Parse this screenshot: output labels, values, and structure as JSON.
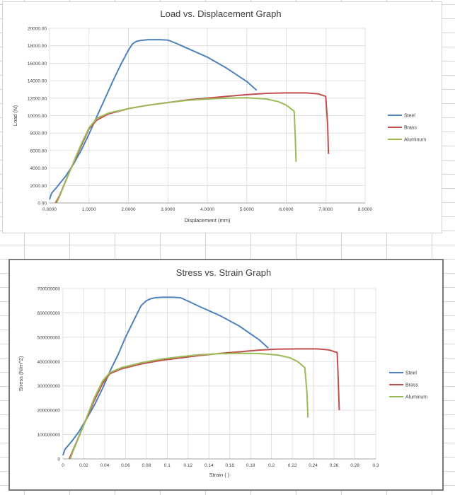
{
  "chart_data": [
    {
      "type": "line",
      "title": "Load vs. Displacement Graph",
      "xlabel": "Displacement (mm)",
      "ylabel": "Load (N)",
      "xlim": [
        0,
        8
      ],
      "ylim": [
        0,
        20000
      ],
      "xticks": [
        0,
        1,
        2,
        3,
        4,
        5,
        6,
        7,
        8
      ],
      "xtick_labels": [
        "0.0000",
        "1.0000",
        "2.0000",
        "3.0000",
        "4.0000",
        "5.0000",
        "6.0000",
        "7.0000",
        "8.0000"
      ],
      "yticks": [
        0,
        2000,
        4000,
        6000,
        8000,
        10000,
        12000,
        14000,
        16000,
        18000,
        20000
      ],
      "ytick_labels": [
        "0.00",
        "2000.00",
        "4000.00",
        "6000.00",
        "8000.00",
        "10000.00",
        "12000.00",
        "14000.00",
        "16000.00",
        "18000.00",
        "20000.00"
      ],
      "grid": true,
      "legend_position": "right",
      "series": [
        {
          "name": "Steel",
          "color": "#4f81bd",
          "x": [
            0,
            0.05,
            0.2,
            0.4,
            0.6,
            0.8,
            1.0,
            1.2,
            1.4,
            1.6,
            1.8,
            2.0,
            2.1,
            2.2,
            2.3,
            2.5,
            2.8,
            3.0,
            3.2,
            3.5,
            4.0,
            4.5,
            5.0,
            5.25
          ],
          "y": [
            400,
            1100,
            1900,
            3000,
            4400,
            6000,
            7900,
            9900,
            11900,
            13900,
            15800,
            17500,
            18200,
            18500,
            18600,
            18700,
            18700,
            18650,
            18300,
            17700,
            16700,
            15400,
            13900,
            12900
          ]
        },
        {
          "name": "Brass",
          "color": "#c0504d",
          "x": [
            0.15,
            0.25,
            0.5,
            0.8,
            1.0,
            1.2,
            1.5,
            2.0,
            2.5,
            3.0,
            3.5,
            4.0,
            4.5,
            5.0,
            5.5,
            6.0,
            6.5,
            6.8,
            7.0,
            7.05,
            7.07
          ],
          "y": [
            0,
            800,
            3500,
            6500,
            8500,
            9500,
            10200,
            10800,
            11200,
            11500,
            11800,
            12000,
            12200,
            12400,
            12550,
            12600,
            12600,
            12500,
            12200,
            9000,
            5600
          ]
        },
        {
          "name": "Aluminum",
          "color": "#9bbb59",
          "x": [
            0.18,
            0.25,
            0.5,
            0.8,
            1.0,
            1.2,
            1.5,
            2.0,
            2.5,
            3.0,
            3.5,
            4.0,
            4.5,
            5.0,
            5.5,
            5.8,
            6.0,
            6.2,
            6.23,
            6.25
          ],
          "y": [
            0,
            700,
            3500,
            6700,
            8600,
            9700,
            10300,
            10800,
            11200,
            11500,
            11750,
            11900,
            12000,
            12050,
            11900,
            11600,
            11200,
            10500,
            7500,
            4700
          ]
        }
      ]
    },
    {
      "type": "line",
      "title": "Stress vs. Strain Graph",
      "xlabel": "Strain ( )",
      "ylabel": "Stress (N/m^2)",
      "xlim": [
        0,
        0.3
      ],
      "ylim": [
        0,
        700000000
      ],
      "xticks": [
        0,
        0.02,
        0.04,
        0.06,
        0.08,
        0.1,
        0.12,
        0.14,
        0.16,
        0.18,
        0.2,
        0.22,
        0.24,
        0.26,
        0.28,
        0.3
      ],
      "xtick_labels": [
        "0",
        "0.02",
        "0.04",
        "0.06",
        "0.08",
        "0.1",
        "0.12",
        "0.14",
        "0.16",
        "0.18",
        "0.2",
        "0.22",
        "0.24",
        "0.26",
        "0.28",
        "0.3"
      ],
      "yticks": [
        0,
        100000000,
        200000000,
        300000000,
        400000000,
        500000000,
        600000000,
        700000000
      ],
      "ytick_labels": [
        "0",
        "100000000",
        "200000000",
        "300000000",
        "400000000",
        "500000000",
        "600000000",
        "700000000"
      ],
      "grid": true,
      "legend_position": "right",
      "series": [
        {
          "name": "Steel",
          "color": "#4f81bd",
          "x": [
            0,
            0.002,
            0.008,
            0.015,
            0.022,
            0.03,
            0.038,
            0.045,
            0.053,
            0.06,
            0.068,
            0.075,
            0.08,
            0.084,
            0.088,
            0.095,
            0.105,
            0.113,
            0.12,
            0.131,
            0.15,
            0.169,
            0.188,
            0.197
          ],
          "y": [
            15000000,
            40000000,
            70000000,
            110000000,
            160000000,
            220000000,
            290000000,
            360000000,
            430000000,
            500000000,
            570000000,
            630000000,
            650000000,
            658000000,
            662000000,
            664000000,
            664000000,
            662000000,
            648000000,
            626000000,
            590000000,
            546000000,
            490000000,
            455000000
          ]
        },
        {
          "name": "Brass",
          "color": "#c0504d",
          "x": [
            0.006,
            0.009,
            0.019,
            0.03,
            0.038,
            0.045,
            0.056,
            0.075,
            0.094,
            0.113,
            0.131,
            0.15,
            0.169,
            0.188,
            0.206,
            0.225,
            0.244,
            0.255,
            0.263,
            0.264,
            0.265
          ],
          "y": [
            0,
            30000000,
            130000000,
            240000000,
            310000000,
            350000000,
            370000000,
            390000000,
            405000000,
            415000000,
            425000000,
            433000000,
            440000000,
            447000000,
            451000000,
            452000000,
            452000000,
            448000000,
            437000000,
            325000000,
            200000000
          ]
        },
        {
          "name": "Aluminum",
          "color": "#9bbb59",
          "x": [
            0.007,
            0.009,
            0.019,
            0.03,
            0.038,
            0.045,
            0.056,
            0.075,
            0.094,
            0.113,
            0.131,
            0.15,
            0.169,
            0.188,
            0.206,
            0.218,
            0.225,
            0.232,
            0.234,
            0.235
          ],
          "y": [
            0,
            25000000,
            130000000,
            250000000,
            320000000,
            355000000,
            375000000,
            395000000,
            410000000,
            420000000,
            428000000,
            432000000,
            434000000,
            433000000,
            427000000,
            415000000,
            400000000,
            375000000,
            270000000,
            170000000
          ]
        }
      ]
    }
  ]
}
